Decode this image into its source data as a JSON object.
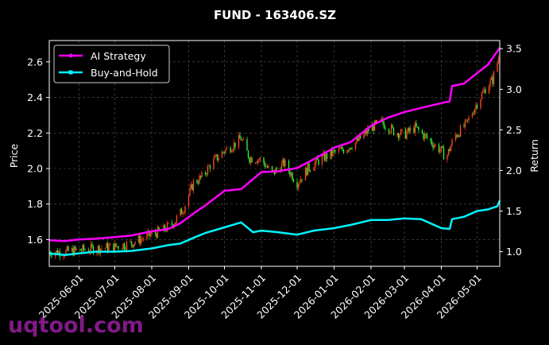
{
  "chart_data": {
    "type": "line",
    "title": "FUND - 163406.SZ",
    "ylabel_left": "Price",
    "ylabel_right": "Return",
    "ylim_left": [
      1.45,
      2.72
    ],
    "ylim_right": [
      0.82,
      3.6
    ],
    "yticks_left": [
      "1.6",
      "1.8",
      "2.0",
      "2.2",
      "2.4",
      "2.6"
    ],
    "yticks_right": [
      "1.0",
      "1.5",
      "2.0",
      "2.5",
      "3.0",
      "3.5"
    ],
    "xlim": [
      "2025-05-07",
      "2026-05-20"
    ],
    "xticks": [
      "2025-06-01",
      "2025-07-01",
      "2025-08-01",
      "2025-09-01",
      "2025-10-01",
      "2025-11-01",
      "2025-12-01",
      "2026-01-01",
      "2026-02-01",
      "2026-03-01",
      "2026-04-01",
      "2026-05-01"
    ],
    "grid": true,
    "legend_position": "top-left",
    "colors": {
      "ai": "#ff00ff",
      "bh": "#00f5ff",
      "up": "#ff4422",
      "down": "#33ee33",
      "grid": "#555555"
    },
    "series": [
      {
        "name": "AI Strategy",
        "axis": "right",
        "x": [
          "2025-05-07",
          "2025-05-20",
          "2025-06-01",
          "2025-06-15",
          "2025-07-01",
          "2025-07-15",
          "2025-08-01",
          "2025-08-15",
          "2025-08-25",
          "2025-09-05",
          "2025-09-15",
          "2025-10-01",
          "2025-10-15",
          "2025-11-01",
          "2025-11-15",
          "2025-12-01",
          "2025-12-15",
          "2026-01-01",
          "2026-01-15",
          "2026-02-01",
          "2026-02-15",
          "2026-03-01",
          "2026-03-15",
          "2026-04-01",
          "2026-04-08",
          "2026-04-10",
          "2026-04-20",
          "2026-05-01",
          "2026-05-10",
          "2026-05-20"
        ],
        "values": [
          1.14,
          1.13,
          1.15,
          1.16,
          1.18,
          1.2,
          1.25,
          1.28,
          1.35,
          1.47,
          1.57,
          1.75,
          1.77,
          1.98,
          1.99,
          2.03,
          2.14,
          2.28,
          2.35,
          2.55,
          2.65,
          2.72,
          2.77,
          2.83,
          2.85,
          3.04,
          3.07,
          3.2,
          3.3,
          3.51
        ]
      },
      {
        "name": "Buy-and-Hold",
        "axis": "right",
        "x": [
          "2025-05-07",
          "2025-05-20",
          "2025-06-01",
          "2025-06-15",
          "2025-07-01",
          "2025-07-15",
          "2025-08-01",
          "2025-08-15",
          "2025-08-25",
          "2025-09-05",
          "2025-09-15",
          "2025-10-01",
          "2025-10-15",
          "2025-10-25",
          "2025-11-01",
          "2025-11-15",
          "2025-12-01",
          "2025-12-15",
          "2026-01-01",
          "2026-01-15",
          "2026-02-01",
          "2026-02-15",
          "2026-03-01",
          "2026-03-15",
          "2026-04-01",
          "2026-04-08",
          "2026-04-10",
          "2026-04-20",
          "2026-05-01",
          "2026-05-10",
          "2026-05-18",
          "2026-05-20"
        ],
        "values": [
          0.98,
          0.96,
          0.98,
          1.0,
          1.0,
          1.01,
          1.04,
          1.08,
          1.1,
          1.17,
          1.23,
          1.3,
          1.36,
          1.24,
          1.26,
          1.24,
          1.21,
          1.26,
          1.29,
          1.33,
          1.39,
          1.39,
          1.41,
          1.4,
          1.29,
          1.28,
          1.4,
          1.43,
          1.5,
          1.52,
          1.56,
          1.63
        ]
      }
    ],
    "price_points": {
      "axis": "left",
      "x": [
        "2025-05-07",
        "2025-05-20",
        "2025-06-01",
        "2025-06-15",
        "2025-07-01",
        "2025-07-15",
        "2025-08-01",
        "2025-08-10",
        "2025-08-20",
        "2025-08-28",
        "2025-09-05",
        "2025-09-12",
        "2025-09-20",
        "2025-10-01",
        "2025-10-10",
        "2025-10-15",
        "2025-10-22",
        "2025-11-01",
        "2025-11-10",
        "2025-11-20",
        "2025-12-01",
        "2025-12-10",
        "2025-12-20",
        "2026-01-01",
        "2026-01-10",
        "2026-01-20",
        "2026-02-01",
        "2026-02-10",
        "2026-02-20",
        "2026-03-01",
        "2026-03-10",
        "2026-03-20",
        "2026-04-01",
        "2026-04-05",
        "2026-04-12",
        "2026-04-22",
        "2026-05-01",
        "2026-05-08",
        "2026-05-14",
        "2026-05-20"
      ],
      "values": [
        1.53,
        1.53,
        1.54,
        1.55,
        1.56,
        1.58,
        1.63,
        1.65,
        1.7,
        1.78,
        1.92,
        1.95,
        2.03,
        2.1,
        2.14,
        2.17,
        2.06,
        2.05,
        1.97,
        2.03,
        1.92,
        2.0,
        2.05,
        2.09,
        2.11,
        2.15,
        2.23,
        2.26,
        2.21,
        2.19,
        2.23,
        2.17,
        2.1,
        2.06,
        2.18,
        2.25,
        2.37,
        2.45,
        2.5,
        2.65
      ]
    }
  },
  "watermark": "uqtool.com"
}
